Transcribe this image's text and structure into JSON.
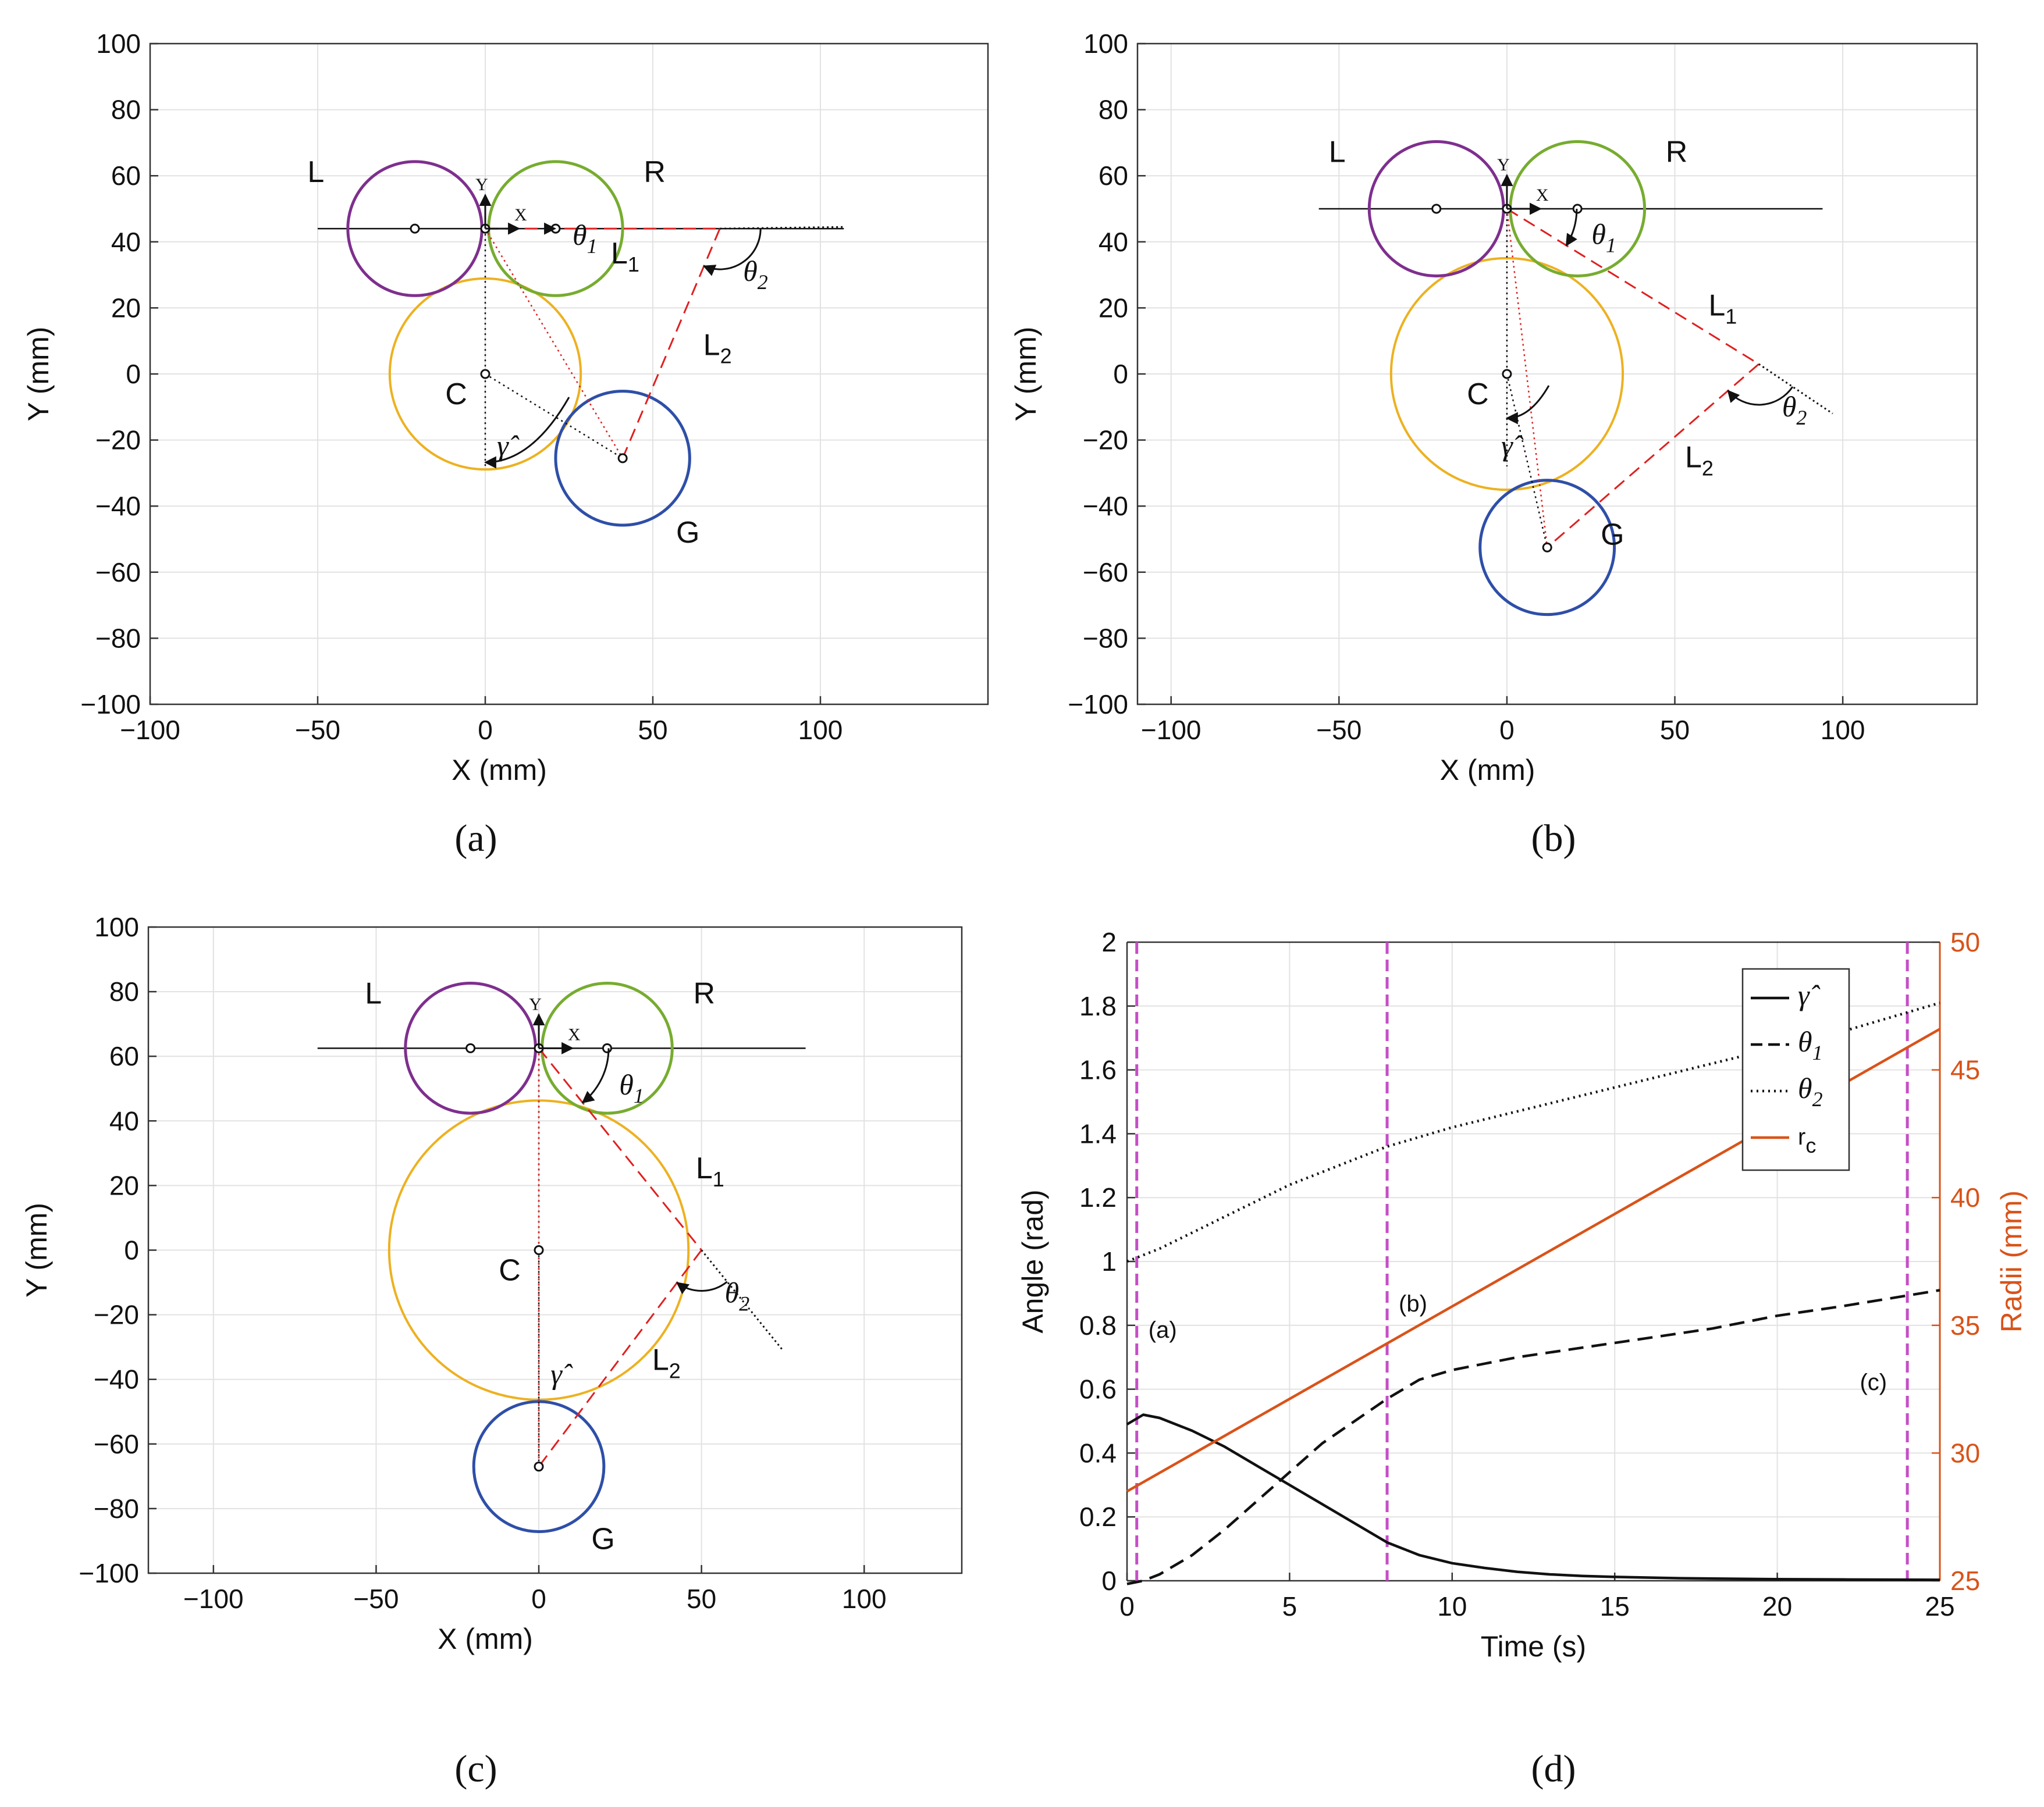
{
  "colors": {
    "left_circle": "#7e2f8e",
    "right_circle": "#77ac30",
    "center_circle": "#edb120",
    "goal_circle": "#2e4fa8",
    "link": "#e02020",
    "rc_line": "#d95319",
    "marker": "#c54ec6",
    "grid": "#e2e2e2"
  },
  "chart_data": [
    {
      "panel": "(a)",
      "type": "diagram",
      "xlabel": "X (mm)",
      "ylabel": "Y (mm)",
      "xlim": [
        -100,
        150
      ],
      "ylim": [
        -100,
        100
      ],
      "xticks": [
        -100,
        -50,
        0,
        50,
        100
      ],
      "yticks": [
        -100,
        -80,
        -60,
        -40,
        -20,
        0,
        20,
        40,
        60,
        80,
        100
      ],
      "circles": {
        "L": {
          "x": -21,
          "y": 44,
          "r": 20
        },
        "R": {
          "x": 21,
          "y": 44,
          "r": 20
        },
        "C": {
          "x": 0,
          "y": 0,
          "r": 28.5
        },
        "G": {
          "x": 41,
          "y": -25.5,
          "r": 20
        }
      },
      "axis_line": {
        "x0": -50,
        "x1": 107,
        "y": 44
      },
      "joint1": {
        "x": 70,
        "y": 44
      },
      "theta1_dir_end": {
        "x": 107,
        "y": 44.5
      },
      "labels": {
        "L": "L",
        "R": "R",
        "C": "C",
        "G": "G",
        "L1": "L",
        "L1_sub": "1",
        "L2": "L",
        "L2_sub": "2",
        "x_axis": "X",
        "y_axis": "Y",
        "theta1": "θ",
        "theta1_sub": "1",
        "theta2": "θ",
        "theta2_sub": "2",
        "gamma": "γ̂"
      }
    },
    {
      "panel": "(b)",
      "type": "diagram",
      "xlabel": "X (mm)",
      "ylabel": "Y (mm)",
      "xlim": [
        -110,
        140
      ],
      "ylim": [
        -100,
        100
      ],
      "xticks": [
        -100,
        -50,
        0,
        50,
        100
      ],
      "yticks": [
        -100,
        -80,
        -60,
        -40,
        -20,
        0,
        20,
        40,
        60,
        80,
        100
      ],
      "circles": {
        "L": {
          "x": -21,
          "y": 50,
          "r": 20
        },
        "R": {
          "x": 21,
          "y": 50,
          "r": 20
        },
        "C": {
          "x": 0,
          "y": 0,
          "r": 34.5
        },
        "G": {
          "x": 12,
          "y": -52.5,
          "r": 20
        }
      },
      "axis_line": {
        "x0": -56,
        "x1": 94,
        "y": 50
      },
      "joint1": {
        "x": 75,
        "y": 3
      },
      "theta1_dir_end": {
        "x": 97,
        "y": -12
      },
      "labels": {
        "L": "L",
        "R": "R",
        "C": "C",
        "G": "G",
        "L1": "L",
        "L1_sub": "1",
        "L2": "L",
        "L2_sub": "2",
        "x_axis": "X",
        "y_axis": "Y",
        "theta1": "θ",
        "theta1_sub": "1",
        "theta2": "θ",
        "theta2_sub": "2",
        "gamma": "γ̂"
      }
    },
    {
      "panel": "(c)",
      "type": "diagram",
      "xlabel": "X (mm)",
      "ylabel": "Y (mm)",
      "xlim": [
        -120,
        130
      ],
      "ylim": [
        -100,
        100
      ],
      "xticks": [
        -100,
        -50,
        0,
        50,
        100
      ],
      "yticks": [
        -100,
        -80,
        -60,
        -40,
        -20,
        0,
        20,
        40,
        60,
        80,
        100
      ],
      "circles": {
        "L": {
          "x": -21,
          "y": 62.5,
          "r": 20
        },
        "R": {
          "x": 21,
          "y": 62.5,
          "r": 20
        },
        "C": {
          "x": 0,
          "y": 0,
          "r": 46
        },
        "G": {
          "x": 0,
          "y": -67,
          "r": 20
        }
      },
      "axis_line": {
        "x0": -68,
        "x1": 82,
        "y": 62.5
      },
      "joint1": {
        "x": 50,
        "y": 0
      },
      "theta1_dir_end": {
        "x": 75,
        "y": -31
      },
      "labels": {
        "L": "L",
        "R": "R",
        "C": "C",
        "G": "G",
        "L1": "L",
        "L1_sub": "1",
        "L2": "L",
        "L2_sub": "2",
        "x_axis": "X",
        "y_axis": "Y",
        "theta1": "θ",
        "theta1_sub": "1",
        "theta2": "θ",
        "theta2_sub": "2",
        "gamma": "γ̂"
      }
    },
    {
      "panel": "(d)",
      "type": "line",
      "xlabel": "Time (s)",
      "ylabel_left": "Angle (rad)",
      "ylabel_right": "Radii (mm)",
      "xlim": [
        0,
        25
      ],
      "ylim_left": [
        0,
        2
      ],
      "ylim_right": [
        25,
        50
      ],
      "xticks": [
        0,
        5,
        10,
        15,
        20,
        25
      ],
      "yticks_left": [
        "0",
        "0.2",
        "0.4",
        "0.6",
        "0.8",
        "1",
        "1.2",
        "1.4",
        "1.6",
        "1.8",
        "2"
      ],
      "yticks_right": [
        25,
        30,
        35,
        40,
        45,
        50
      ],
      "markers": [
        {
          "t": 0.3,
          "label": "(a)"
        },
        {
          "t": 8,
          "label": "(b)"
        },
        {
          "t": 24,
          "label": "(c)"
        }
      ],
      "legend": {
        "location": "top-right",
        "entries": [
          "γ̂",
          "θ",
          "θ",
          "r"
        ],
        "subs": [
          "",
          "1",
          "2",
          "c"
        ]
      },
      "series": [
        {
          "name": "gamma_hat",
          "axis": "left",
          "style": "solid",
          "t": [
            0,
            0.5,
            1,
            2,
            3,
            4,
            5,
            6,
            7,
            8,
            9,
            10,
            11,
            12,
            13,
            14,
            15,
            17,
            20,
            22,
            25
          ],
          "v": [
            0.49,
            0.52,
            0.51,
            0.47,
            0.42,
            0.36,
            0.3,
            0.24,
            0.18,
            0.12,
            0.08,
            0.055,
            0.04,
            0.028,
            0.02,
            0.015,
            0.012,
            0.008,
            0.005,
            0.004,
            0.003
          ]
        },
        {
          "name": "theta1",
          "axis": "left",
          "style": "dashed",
          "t": [
            0,
            0.5,
            1,
            2,
            3,
            4,
            5,
            6,
            7,
            8,
            9,
            10,
            11,
            12,
            14,
            16,
            18,
            20,
            22,
            25
          ],
          "v": [
            -0.01,
            0.0,
            0.02,
            0.08,
            0.16,
            0.25,
            0.34,
            0.43,
            0.5,
            0.57,
            0.63,
            0.66,
            0.68,
            0.7,
            0.73,
            0.76,
            0.79,
            0.83,
            0.86,
            0.91
          ]
        },
        {
          "name": "theta2",
          "axis": "left",
          "style": "dotted",
          "t": [
            0,
            1,
            2,
            3,
            4,
            5,
            6,
            7,
            8,
            9,
            10,
            12,
            14,
            16,
            18,
            20,
            22,
            25
          ],
          "v": [
            1.0,
            1.04,
            1.09,
            1.14,
            1.19,
            1.24,
            1.28,
            1.32,
            1.36,
            1.39,
            1.42,
            1.47,
            1.52,
            1.57,
            1.62,
            1.67,
            1.72,
            1.81
          ]
        },
        {
          "name": "r_c",
          "axis": "right",
          "style": "solid",
          "t": [
            0,
            25
          ],
          "v": [
            28.5,
            46.6
          ]
        }
      ]
    }
  ],
  "panel_labels": {
    "a": "(a)",
    "b": "(b)",
    "c": "(c)",
    "d": "(d)"
  }
}
